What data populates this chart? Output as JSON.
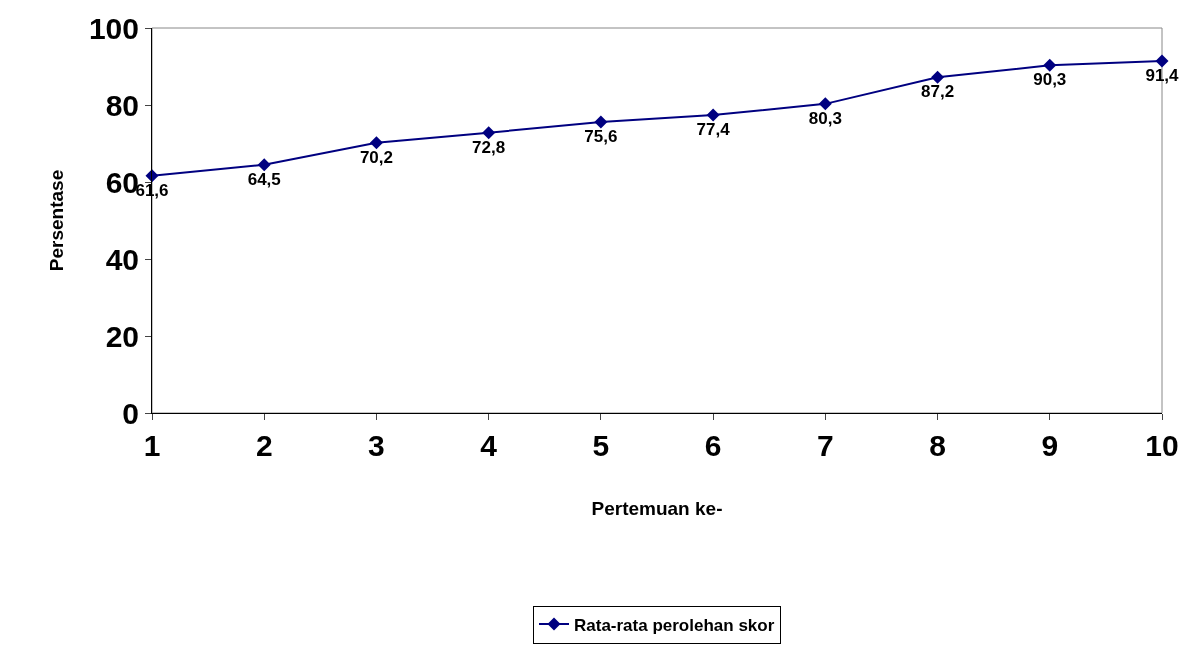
{
  "chart_data": {
    "type": "line",
    "xlabel": "Pertemuan ke-",
    "ylabel": "Persentase",
    "categories": [
      "1",
      "2",
      "3",
      "4",
      "5",
      "6",
      "7",
      "8",
      "9",
      "10"
    ],
    "series": [
      {
        "name": "Rata-rata perolehan skor",
        "color": "#000080",
        "values": [
          61.6,
          64.5,
          70.2,
          72.8,
          75.6,
          77.4,
          80.3,
          87.2,
          90.3,
          91.4
        ],
        "value_labels": [
          "61,6",
          "64,5",
          "70,2",
          "72,8",
          "75,6",
          "77,4",
          "80,3",
          "87,2",
          "90,3",
          "91,4"
        ]
      }
    ],
    "ylim": [
      0,
      100
    ],
    "yticks": [
      0,
      20,
      40,
      60,
      80,
      100
    ],
    "grid": false,
    "legend": "bottom",
    "marker": "diamond",
    "line_style": "solid"
  }
}
